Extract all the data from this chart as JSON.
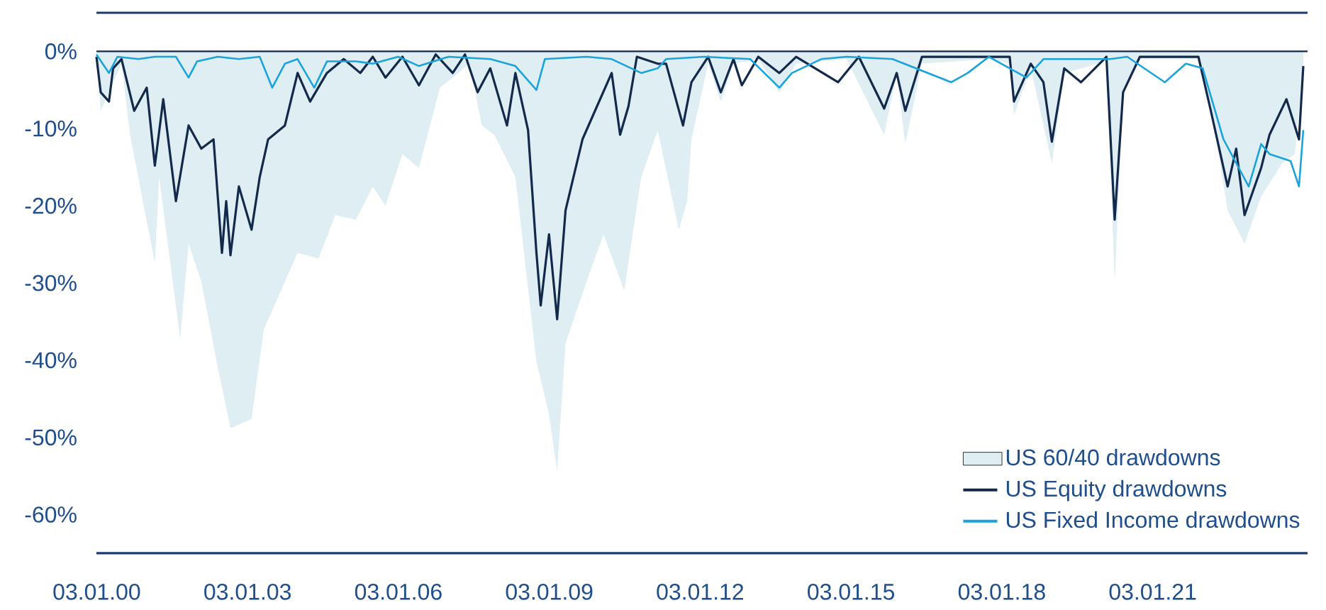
{
  "chart_data": {
    "type": "line",
    "xlim": [
      "2000-01-01",
      "2024-02-01"
    ],
    "ylim": [
      -65,
      5
    ],
    "xticks": [
      {
        "value": "2000-01-03",
        "label": "03.01.00"
      },
      {
        "value": "2003-01-03",
        "label": "03.01.03"
      },
      {
        "value": "2006-01-03",
        "label": "03.01.06"
      },
      {
        "value": "2009-01-03",
        "label": "03.01.09"
      },
      {
        "value": "2012-01-03",
        "label": "03.01.12"
      },
      {
        "value": "2015-01-03",
        "label": "03.01.15"
      },
      {
        "value": "2018-01-03",
        "label": "03.01.18"
      },
      {
        "value": "2021-01-03",
        "label": "03.01.21"
      }
    ],
    "yticks": [
      {
        "value": 0,
        "label": "0%"
      },
      {
        "value": -10,
        "label": "-10%"
      },
      {
        "value": -20,
        "label": "-20%"
      },
      {
        "value": -30,
        "label": "-30%"
      },
      {
        "value": -40,
        "label": "-40%"
      },
      {
        "value": -50,
        "label": "-50%"
      },
      {
        "value": -60,
        "label": "-60%"
      }
    ],
    "legend": "bottom right",
    "marker": "none",
    "line_style": "solid",
    "ref_lines": [
      {
        "axis": "y",
        "value": 0,
        "color": "#13294b"
      }
    ],
    "series": [
      {
        "name": "US 60/40 drawdowns",
        "type": "area",
        "color": "#deeef2",
        "x": [
          "2000-01",
          "2000-02",
          "2000-07",
          "2000-09",
          "2001-03",
          "2001-04",
          "2001-09",
          "2001-11",
          "2002-02",
          "2002-06",
          "2002-09",
          "2003-02",
          "2003-05",
          "2003-08",
          "2004-01",
          "2004-06",
          "2004-10",
          "2005-03",
          "2005-07",
          "2005-10",
          "2006-02",
          "2006-06",
          "2006-11",
          "2007-02",
          "2007-06",
          "2007-09",
          "2007-12",
          "2008-05",
          "2008-10",
          "2009-01",
          "2009-03",
          "2009-05",
          "2009-10",
          "2010-02",
          "2010-07",
          "2010-11",
          "2011-03",
          "2011-08",
          "2011-10",
          "2011-11",
          "2012-03",
          "2012-06",
          "2012-09",
          "2013-03",
          "2013-08",
          "2013-12",
          "2014-12",
          "2015-09",
          "2015-12",
          "2016-02",
          "2016-06",
          "2017-10",
          "2018-03",
          "2018-04",
          "2018-08",
          "2019-01",
          "2019-04",
          "2020-02",
          "2020-04",
          "2020-06",
          "2020-10",
          "2021-12",
          "2022-03",
          "2022-07",
          "2022-11",
          "2023-03",
          "2023-08",
          "2023-11",
          "2024-01"
        ],
        "values": [
          -0.4,
          -7.7,
          -1.6,
          -10.8,
          -27.4,
          -16.3,
          -37.2,
          -24.9,
          -29.8,
          -40.9,
          -48.8,
          -47.6,
          -36.0,
          -32.3,
          -26.1,
          -26.8,
          -21.2,
          -21.8,
          -17.5,
          -20.0,
          -13.3,
          -15.1,
          -4.7,
          -3.4,
          -1.6,
          -9.6,
          -10.8,
          -16.3,
          -40.2,
          -47.0,
          -54.4,
          -37.8,
          -29.8,
          -23.7,
          -31.0,
          -16.3,
          -10.2,
          -23.1,
          -19.4,
          -11.4,
          -1.6,
          -6.5,
          -1.6,
          -1.0,
          -5.3,
          -1.6,
          -1.0,
          -10.8,
          -2.8,
          -12.0,
          -1.6,
          -1.0,
          -1.6,
          -8.3,
          -2.2,
          -14.5,
          -2.8,
          -1.3,
          -29.8,
          -5.3,
          -1.0,
          -1.0,
          -7.1,
          -20.6,
          -24.9,
          -18.8,
          -14.5,
          -13.3,
          -1.6
        ]
      },
      {
        "name": "US Equity drawdowns",
        "color": "#13294b",
        "x": [
          "2000-01",
          "2000-02",
          "2000-04",
          "2000-05",
          "2000-07",
          "2000-10",
          "2001-01",
          "2001-03",
          "2001-05",
          "2001-08",
          "2001-11",
          "2002-02",
          "2002-05",
          "2002-07",
          "2002-08",
          "2002-09",
          "2002-11",
          "2003-02",
          "2003-04",
          "2003-06",
          "2003-10",
          "2004-01",
          "2004-04",
          "2004-08",
          "2004-12",
          "2005-04",
          "2005-07",
          "2005-10",
          "2006-02",
          "2006-06",
          "2006-10",
          "2007-02",
          "2007-05",
          "2007-08",
          "2007-11",
          "2008-03",
          "2008-05",
          "2008-08",
          "2008-10",
          "2008-11",
          "2009-01",
          "2009-03",
          "2009-05",
          "2009-09",
          "2009-12",
          "2010-04",
          "2010-06",
          "2010-08",
          "2010-10",
          "2011-03",
          "2011-05",
          "2011-09",
          "2011-11",
          "2012-03",
          "2012-06",
          "2012-09",
          "2012-11",
          "2013-03",
          "2013-08",
          "2013-12",
          "2014-10",
          "2015-03",
          "2015-09",
          "2015-12",
          "2016-02",
          "2016-06",
          "2017-01",
          "2017-10",
          "2018-03",
          "2018-04",
          "2018-08",
          "2018-11",
          "2019-01",
          "2019-04",
          "2019-08",
          "2020-02",
          "2020-04",
          "2020-06",
          "2020-10",
          "2021-07",
          "2021-12",
          "2022-03",
          "2022-07",
          "2022-09",
          "2022-11",
          "2023-03",
          "2023-05",
          "2023-09",
          "2023-12",
          "2024-01"
        ],
        "values": [
          -0.7,
          -5.3,
          -6.5,
          -2.2,
          -1.0,
          -7.7,
          -4.7,
          -14.8,
          -6.2,
          -19.4,
          -9.6,
          -12.6,
          -11.4,
          -26.1,
          -19.4,
          -26.4,
          -17.5,
          -23.1,
          -16.3,
          -11.4,
          -9.6,
          -2.8,
          -6.5,
          -2.8,
          -1.0,
          -2.8,
          -0.7,
          -3.4,
          -0.7,
          -4.4,
          -0.4,
          -2.8,
          -0.4,
          -5.3,
          -2.2,
          -9.6,
          -2.8,
          -10.2,
          -26.1,
          -32.9,
          -23.7,
          -34.7,
          -20.6,
          -11.4,
          -7.7,
          -2.8,
          -10.8,
          -7.1,
          -0.7,
          -1.6,
          -1.6,
          -9.6,
          -4.0,
          -0.7,
          -5.3,
          -1.0,
          -4.4,
          -0.7,
          -2.8,
          -0.7,
          -4.0,
          -0.7,
          -7.4,
          -2.8,
          -7.7,
          -0.7,
          -0.7,
          -0.7,
          -0.7,
          -6.5,
          -1.6,
          -4.0,
          -11.7,
          -2.2,
          -4.0,
          -0.7,
          -21.8,
          -5.3,
          -0.7,
          -0.7,
          -0.7,
          -7.7,
          -17.5,
          -12.6,
          -21.2,
          -15.1,
          -10.8,
          -6.2,
          -11.4,
          -1.9
        ]
      },
      {
        "name": "US Fixed Income drawdowns",
        "color": "#1ba3dc",
        "x": [
          "2000-01",
          "2000-04",
          "2000-06",
          "2000-11",
          "2001-03",
          "2001-08",
          "2001-11",
          "2002-01",
          "2002-06",
          "2002-11",
          "2003-04",
          "2003-07",
          "2003-10",
          "2004-01",
          "2004-05",
          "2004-08",
          "2005-03",
          "2005-07",
          "2006-01",
          "2006-06",
          "2007-01",
          "2007-11",
          "2008-05",
          "2008-10",
          "2008-12",
          "2009-10",
          "2010-04",
          "2010-11",
          "2011-03",
          "2011-05",
          "2012-02",
          "2013-01",
          "2013-08",
          "2013-11",
          "2014-06",
          "2014-12",
          "2015-11",
          "2017-01",
          "2017-05",
          "2017-10",
          "2018-03",
          "2018-07",
          "2018-11",
          "2019-06",
          "2020-03",
          "2020-07",
          "2021-04",
          "2021-09",
          "2022-01",
          "2022-06",
          "2022-12",
          "2023-03",
          "2023-05",
          "2023-10",
          "2023-12",
          "2024-01"
        ],
        "values": [
          -0.4,
          -2.8,
          -0.7,
          -1.0,
          -0.7,
          -0.7,
          -3.4,
          -1.3,
          -0.7,
          -1.0,
          -0.7,
          -4.7,
          -1.6,
          -1.0,
          -4.7,
          -1.3,
          -1.3,
          -1.6,
          -0.7,
          -1.9,
          -0.7,
          -1.0,
          -1.9,
          -5.0,
          -1.0,
          -0.7,
          -1.0,
          -2.8,
          -2.2,
          -1.0,
          -0.7,
          -1.0,
          -4.7,
          -2.8,
          -1.0,
          -0.7,
          -1.0,
          -4.0,
          -2.8,
          -0.7,
          -2.2,
          -3.4,
          -1.0,
          -1.0,
          -1.0,
          -0.7,
          -4.0,
          -1.6,
          -2.2,
          -11.4,
          -17.5,
          -12.0,
          -13.3,
          -14.2,
          -17.5,
          -10.2
        ]
      }
    ]
  }
}
